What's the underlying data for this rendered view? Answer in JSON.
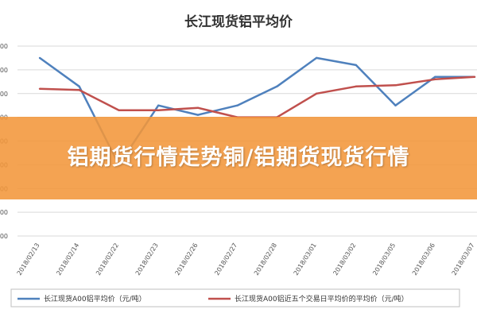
{
  "banner": {
    "headline": "铝期货行情走势铜/铝期货现货行情"
  },
  "colors": {
    "series_1": "#4f81bd",
    "series_2": "#c0504d",
    "banner": "#f2963a"
  },
  "chart_data": {
    "type": "line",
    "title": "长江现货铝平均价",
    "xlabel": "",
    "ylabel": "",
    "categories": [
      "2018/02/13",
      "2018/02/14",
      "2018/02/22",
      "2018/02/23",
      "2018/02/26",
      "2018/02/27",
      "2018/02/28",
      "2018/03/01",
      "2018/03/02",
      "2018/03/05",
      "2018/03/06",
      "2018/03/07"
    ],
    "y_tick_count": 9,
    "ylim": [
      0,
      8
    ],
    "grid": true,
    "legend_position": "bottom",
    "series": [
      {
        "name": "长江现货A00铝平均价（元/吨）",
        "values": [
          7.5,
          6.3,
          3.0,
          5.5,
          5.1,
          5.5,
          6.3,
          7.5,
          7.2,
          5.5,
          6.7,
          6.7
        ]
      },
      {
        "name": "长江现货A00铝近五个交易日平均价的平均价（元/吨）",
        "values": [
          6.2,
          6.15,
          5.3,
          5.3,
          5.4,
          5.0,
          5.0,
          6.0,
          6.3,
          6.35,
          6.6,
          6.7
        ]
      }
    ]
  }
}
